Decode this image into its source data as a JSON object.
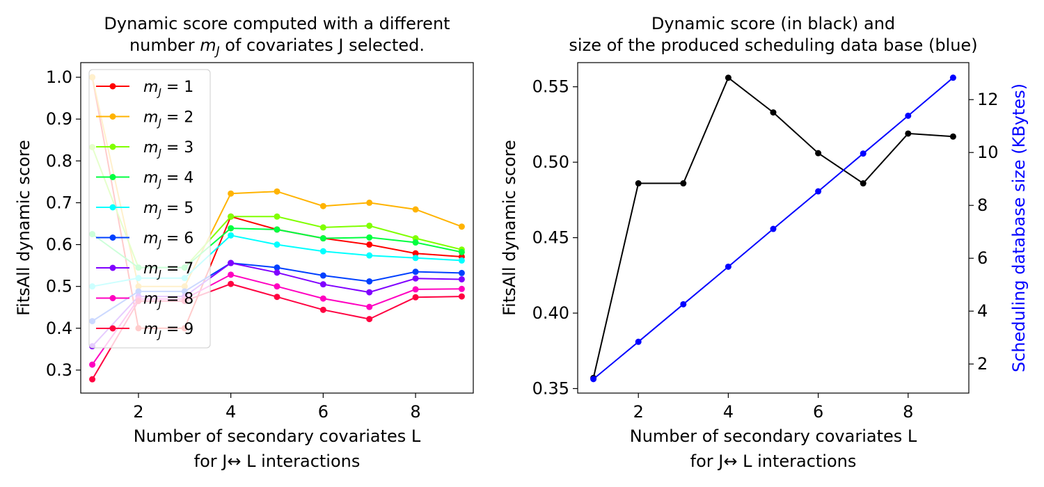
{
  "chart_data": [
    {
      "type": "line",
      "title": [
        "Dynamic score computed with a different",
        "number m_J of covariates J selected."
      ],
      "xlabel": [
        "Number of secondary covariates L",
        "for J↔ L  interactions"
      ],
      "ylabel": "FitsAll dynamic score",
      "xlim": [
        0.75,
        9.25
      ],
      "ylim": [
        0.245,
        1.035
      ],
      "xticks": [
        2,
        4,
        6,
        8
      ],
      "yticks": [
        0.3,
        0.4,
        0.5,
        0.6,
        0.7,
        0.8,
        0.9,
        1.0
      ],
      "legend": "upper-left",
      "x": [
        1,
        2,
        3,
        4,
        5,
        6,
        7,
        8,
        9
      ],
      "series": [
        {
          "name": "m_J = 1",
          "color": "#ff0000",
          "values": [
            1.0,
            0.4,
            0.4,
            0.667,
            0.636,
            0.615,
            0.6,
            0.579,
            0.571
          ]
        },
        {
          "name": "m_J = 2",
          "color": "#ffb300",
          "values": [
            1.0,
            0.5,
            0.5,
            0.722,
            0.727,
            0.692,
            0.7,
            0.684,
            0.643
          ]
        },
        {
          "name": "m_J = 3",
          "color": "#80ff00",
          "values": [
            0.833,
            0.545,
            0.545,
            0.667,
            0.667,
            0.641,
            0.645,
            0.615,
            0.588
          ]
        },
        {
          "name": "m_J = 4",
          "color": "#00ff40",
          "values": [
            0.625,
            0.545,
            0.545,
            0.639,
            0.636,
            0.615,
            0.617,
            0.605,
            0.582
          ]
        },
        {
          "name": "m_J = 5",
          "color": "#00ffff",
          "values": [
            0.5,
            0.52,
            0.52,
            0.622,
            0.6,
            0.584,
            0.574,
            0.568,
            0.562
          ]
        },
        {
          "name": "m_J = 6",
          "color": "#0040ff",
          "values": [
            0.417,
            0.488,
            0.488,
            0.556,
            0.545,
            0.526,
            0.512,
            0.535,
            0.532
          ]
        },
        {
          "name": "m_J = 7",
          "color": "#8000ff",
          "values": [
            0.357,
            0.476,
            0.476,
            0.556,
            0.533,
            0.505,
            0.486,
            0.519,
            0.517
          ]
        },
        {
          "name": "m_J = 8",
          "color": "#ff00c0",
          "values": [
            0.313,
            0.47,
            0.47,
            0.528,
            0.5,
            0.471,
            0.451,
            0.493,
            0.494
          ]
        },
        {
          "name": "m_J = 9",
          "color": "#ff0040",
          "values": [
            0.278,
            0.465,
            0.465,
            0.506,
            0.475,
            0.444,
            0.422,
            0.474,
            0.476
          ]
        }
      ]
    },
    {
      "type": "line",
      "title": [
        "Dynamic score  (in black) and",
        "size of the produced scheduling data base (blue)"
      ],
      "xlabel": [
        "Number of secondary covariates L",
        "for J↔ L  interactions"
      ],
      "ylabel": "FitsAll dynamic score",
      "y2label": "Scheduling database size (KBytes)",
      "xlim": [
        0.65,
        9.35
      ],
      "ylim": [
        0.347,
        0.566
      ],
      "y2lim": [
        0.9,
        13.4
      ],
      "xticks": [
        2,
        4,
        6,
        8
      ],
      "yticks": [
        0.35,
        0.4,
        0.45,
        0.5,
        0.55
      ],
      "y2ticks": [
        2,
        4,
        6,
        8,
        10,
        12
      ],
      "x": [
        1,
        2,
        3,
        4,
        5,
        6,
        7,
        8,
        9
      ],
      "series": [
        {
          "name": "",
          "axis": "left",
          "color": "#000000",
          "values": [
            0.357,
            0.486,
            0.486,
            0.556,
            0.533,
            0.506,
            0.486,
            0.519,
            0.517
          ]
        },
        {
          "name": "",
          "axis": "right",
          "color": "#0000ff",
          "values": [
            1.43,
            2.84,
            4.26,
            5.68,
            7.11,
            8.53,
            9.96,
            11.39,
            12.83
          ]
        }
      ]
    }
  ]
}
